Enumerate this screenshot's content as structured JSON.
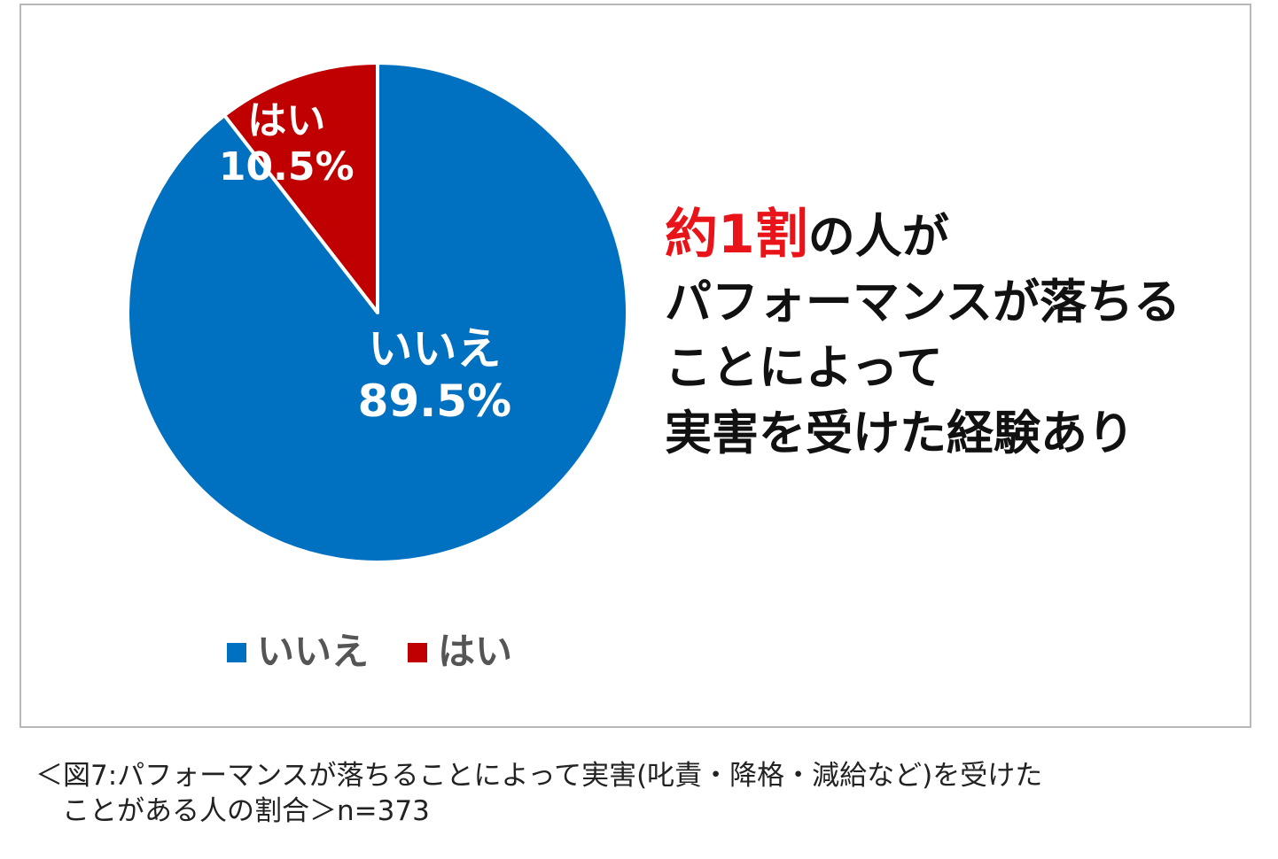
{
  "chart_data": {
    "type": "pie",
    "slices": [
      {
        "name": "いいえ",
        "value": 89.5,
        "label": "89.5%",
        "color": "#0070c0"
      },
      {
        "name": "はい",
        "value": 10.5,
        "label": "10.5%",
        "color": "#c00000"
      }
    ],
    "start_angle_deg": 0,
    "direction": "clockwise",
    "legend_position": "bottom-left",
    "legend": [
      "いいえ",
      "はい"
    ]
  },
  "annotation": {
    "emphasis": "約1割",
    "line1_rest": "の人が",
    "line2": "パフォーマンスが落ちる",
    "line3": "ことによって",
    "line4": "実害を受けた経験あり"
  },
  "caption": {
    "line1": "＜図7:パフォーマンスが落ちることによって実害(叱責・降格・減給など)を受けた",
    "line2": "ことがある人の割合＞n=373"
  },
  "colors": {
    "no": "#0070c0",
    "yes": "#c00000",
    "emphasis": "#e8141a"
  }
}
